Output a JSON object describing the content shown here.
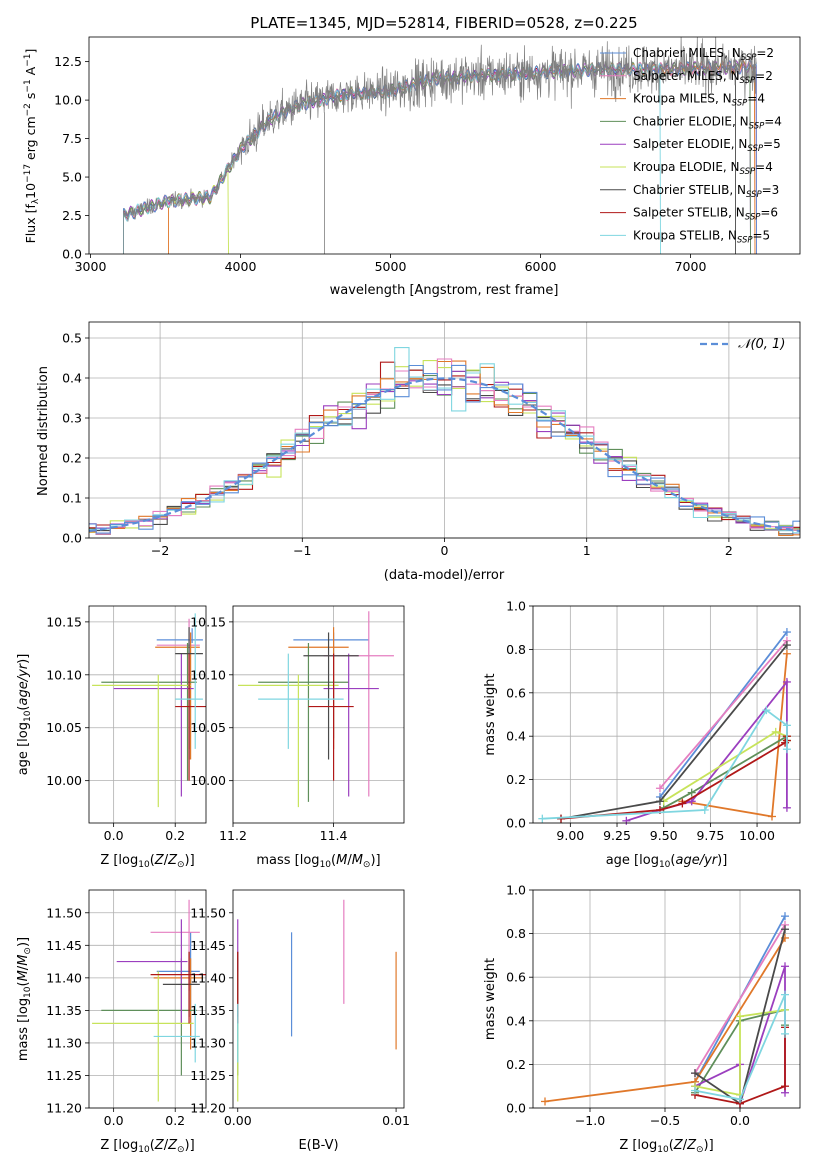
{
  "figure": {
    "title": "PLATE=1345, MJD=52814, FIBERID=0528, z=0.225"
  },
  "series_styles": [
    {
      "name": "Chabrier MILES, N_SSP=2",
      "label_main": "Chabrier MILES, N",
      "label_sub": "SSP",
      "label_tail": "=2",
      "color": "#5b8ed8"
    },
    {
      "name": "Salpeter MILES, N_SSP=2",
      "label_main": "Salpeter MILES, N",
      "label_sub": "SSP",
      "label_tail": "=2",
      "color": "#e57ec0"
    },
    {
      "name": "Kroupa MILES, N_SSP=4",
      "label_main": "Kroupa MILES, N",
      "label_sub": "SSP",
      "label_tail": "=4",
      "color": "#e0782a"
    },
    {
      "name": "Chabrier ELODIE, N_SSP=4",
      "label_main": "Chabrier ELODIE, N",
      "label_sub": "SSP",
      "label_tail": "=4",
      "color": "#5f8f5a"
    },
    {
      "name": "Salpeter ELODIE, N_SSP=5",
      "label_main": "Salpeter ELODIE, N",
      "label_sub": "SSP",
      "label_tail": "=5",
      "color": "#9b3fbf"
    },
    {
      "name": "Kroupa ELODIE, N_SSP=4",
      "label_main": "Kroupa ELODIE, N",
      "label_sub": "SSP",
      "label_tail": "=4",
      "color": "#c7e35a"
    },
    {
      "name": "Chabrier STELIB, N_SSP=3",
      "label_main": "Chabrier STELIB, N",
      "label_sub": "SSP",
      "label_tail": "=3",
      "color": "#4a4a4a"
    },
    {
      "name": "Salpeter STELIB, N_SSP=6",
      "label_main": "Salpeter STELIB, N",
      "label_sub": "SSP",
      "label_tail": "=6",
      "color": "#b01818"
    },
    {
      "name": "Kroupa STELIB, N_SSP=5",
      "label_main": "Kroupa STELIB, N",
      "label_sub": "SSP",
      "label_tail": "=5",
      "color": "#7fd6e0"
    }
  ],
  "chart_data": [
    {
      "id": "spectrum",
      "type": "line",
      "xlabel": "wavelength [Angstrom, rest frame]",
      "ylabel": "Flux [f_λ 10^-17 erg cm^-2 s^-1 A^-1]",
      "xlim": [
        2990,
        7730
      ],
      "ylim": [
        0,
        14.1
      ],
      "xticks": [
        3000,
        4000,
        5000,
        6000,
        7000
      ],
      "yticks": [
        0.0,
        2.5,
        5.0,
        7.5,
        10.0,
        12.5
      ],
      "grid": false,
      "legend": "top-right",
      "continuum_knots": {
        "x": [
          3220,
          3500,
          3800,
          4000,
          4200,
          4400,
          4700,
          5000,
          5300,
          5600,
          6000,
          6400,
          6800,
          7200,
          7600
        ],
        "y": [
          2.5,
          3.4,
          3.7,
          6.8,
          8.8,
          9.7,
          10.4,
          10.6,
          11.4,
          11.6,
          11.8,
          12.0,
          12.0,
          12.1,
          12.2
        ]
      },
      "data_range_by_series": [
        [
          3220,
          7440
        ],
        [
          3220,
          7440
        ],
        [
          3520,
          7430
        ],
        [
          3220,
          7400
        ],
        [
          3220,
          7400
        ],
        [
          3220,
          3920
        ],
        [
          3220,
          7300
        ],
        [
          3220,
          7440
        ],
        [
          3220,
          6800
        ]
      ]
    },
    {
      "id": "residual_hist",
      "type": "histogram",
      "xlabel": "(data-model)/error",
      "ylabel": "Normed distribution",
      "xlim": [
        -2.5,
        2.5
      ],
      "ylim": [
        0,
        0.54
      ],
      "xticks": [
        -2,
        -1,
        0,
        1,
        2
      ],
      "yticks": [
        0.0,
        0.1,
        0.2,
        0.3,
        0.4,
        0.5
      ],
      "grid": true,
      "legend": "top-right",
      "reference_curve": "𝒩(0, 1)",
      "reference_color": "#5b8ed8",
      "bin_width": 0.1
    },
    {
      "id": "Z_vs_age",
      "type": "errorbar",
      "xlabel": "Z [log10(Z/Z☉)]",
      "ylabel": "age  [log10(age/yr)]",
      "xlim": [
        -0.08,
        0.3
      ],
      "ylim": [
        9.96,
        10.165
      ],
      "xticks": [
        0.0,
        0.2
      ],
      "yticks": [
        10.0,
        10.05,
        10.1,
        10.15
      ],
      "grid": true,
      "points": [
        {
          "x": 0.255,
          "xlo": 0.14,
          "xhi": 0.29,
          "y": 10.133,
          "ylo": 10.13,
          "yhi": 10.144
        },
        {
          "x": 0.245,
          "xlo": 0.14,
          "xhi": 0.28,
          "y": 10.128,
          "ylo": 10.03,
          "yhi": 10.153
        },
        {
          "x": 0.25,
          "xlo": 0.135,
          "xhi": 0.28,
          "y": 10.126,
          "ylo": 10.02,
          "yhi": 10.14
        },
        {
          "x": 0.24,
          "xlo": -0.04,
          "xhi": 0.27,
          "y": 10.093,
          "ylo": 10.0,
          "yhi": 10.13
        },
        {
          "x": 0.22,
          "xlo": 0.0,
          "xhi": 0.26,
          "y": 10.087,
          "ylo": 9.985,
          "yhi": 10.12
        },
        {
          "x": 0.145,
          "xlo": -0.07,
          "xhi": 0.25,
          "y": 10.09,
          "ylo": 9.975,
          "yhi": 10.1
        },
        {
          "x": 0.245,
          "xlo": 0.2,
          "xhi": 0.29,
          "y": 10.12,
          "ylo": 10.02,
          "yhi": 10.145
        },
        {
          "x": 0.245,
          "xlo": 0.2,
          "xhi": 0.3,
          "y": 10.07,
          "ylo": 10.0,
          "yhi": 10.12
        },
        {
          "x": 0.265,
          "xlo": 0.2,
          "xhi": 0.29,
          "y": 10.077,
          "ylo": 10.03,
          "yhi": 10.158
        }
      ]
    },
    {
      "id": "mass_vs_age",
      "type": "errorbar",
      "xlabel": "mass [log10(M/M☉)]",
      "ylabel": "",
      "xlim": [
        11.2,
        11.54
      ],
      "ylim": [
        9.96,
        10.165
      ],
      "xticks": [
        11.2,
        11.4
      ],
      "yticks": [
        10.0,
        10.05,
        10.1,
        10.15
      ],
      "grid": true,
      "points": [
        {
          "x": 11.4,
          "xlo": 11.32,
          "xhi": 11.47,
          "y": 10.133,
          "ylo": 10.04,
          "yhi": 10.14
        },
        {
          "x": 11.47,
          "xlo": 11.38,
          "xhi": 11.52,
          "y": 10.118,
          "ylo": 9.985,
          "yhi": 10.16
        },
        {
          "x": 11.4,
          "xlo": 11.31,
          "xhi": 11.43,
          "y": 10.126,
          "ylo": 10.03,
          "yhi": 10.145
        },
        {
          "x": 11.35,
          "xlo": 11.25,
          "xhi": 11.43,
          "y": 10.093,
          "ylo": 9.98,
          "yhi": 10.13
        },
        {
          "x": 11.43,
          "xlo": 11.38,
          "xhi": 11.49,
          "y": 10.087,
          "ylo": 9.985,
          "yhi": 10.12
        },
        {
          "x": 11.33,
          "xlo": 11.21,
          "xhi": 11.41,
          "y": 10.09,
          "ylo": 9.975,
          "yhi": 10.1
        },
        {
          "x": 11.39,
          "xlo": 11.34,
          "xhi": 11.45,
          "y": 10.118,
          "ylo": 10.02,
          "yhi": 10.14
        },
        {
          "x": 11.4,
          "xlo": 11.35,
          "xhi": 11.44,
          "y": 10.07,
          "ylo": 10.0,
          "yhi": 10.12
        },
        {
          "x": 11.31,
          "xlo": 11.25,
          "xhi": 11.42,
          "y": 10.077,
          "ylo": 10.03,
          "yhi": 10.12
        }
      ]
    },
    {
      "id": "age_vs_weight",
      "type": "line",
      "xlabel": "age  [log10(age/yr)]",
      "ylabel": "mass weight",
      "xlim": [
        8.8,
        10.23
      ],
      "ylim": [
        0,
        1.0
      ],
      "xticks": [
        9.0,
        9.25,
        9.5,
        9.75,
        10.0
      ],
      "yticks": [
        0.0,
        0.2,
        0.4,
        0.6,
        0.8,
        1.0
      ],
      "grid": true,
      "series_points": [
        {
          "x": [
            9.48,
            10.16
          ],
          "y": [
            0.12,
            0.88
          ]
        },
        {
          "x": [
            9.48,
            10.16
          ],
          "y": [
            0.16,
            0.84
          ]
        },
        {
          "x": [
            9.6,
            10.08,
            10.16
          ],
          "y": [
            0.1,
            0.03,
            0.78
          ]
        },
        {
          "x": [
            9.5,
            9.65,
            10.16,
            10.16
          ],
          "y": [
            0.07,
            0.14,
            0.4,
            0.38
          ]
        },
        {
          "x": [
            9.3,
            9.48,
            9.65,
            10.16,
            10.16
          ],
          "y": [
            0.01,
            0.06,
            0.1,
            0.65,
            0.07
          ]
        },
        {
          "x": [
            9.5,
            10.1,
            10.16,
            10.16
          ],
          "y": [
            0.1,
            0.42,
            0.4,
            0.38
          ]
        },
        {
          "x": [
            8.95,
            9.48,
            10.16
          ],
          "y": [
            0.02,
            0.1,
            0.82
          ]
        },
        {
          "x": [
            8.95,
            9.48,
            9.6,
            10.15,
            10.16,
            10.16
          ],
          "y": [
            0.02,
            0.06,
            0.09,
            0.37,
            0.4,
            0.38
          ]
        },
        {
          "x": [
            8.85,
            9.72,
            10.05,
            10.16,
            10.16
          ],
          "y": [
            0.02,
            0.06,
            0.52,
            0.45,
            0.34
          ]
        }
      ]
    },
    {
      "id": "Z_vs_mass",
      "type": "errorbar",
      "xlabel": "Z [log10(Z/Z☉)]",
      "ylabel": "mass [log10(M/M☉)]",
      "xlim": [
        -0.08,
        0.3
      ],
      "ylim": [
        11.2,
        11.535
      ],
      "xticks": [
        0.0,
        0.2
      ],
      "yticks": [
        11.2,
        11.25,
        11.3,
        11.35,
        11.4,
        11.45,
        11.5
      ],
      "grid": true,
      "points": [
        {
          "x": 0.25,
          "xlo": 0.14,
          "xhi": 0.28,
          "y": 11.41,
          "ylo": 11.31,
          "yhi": 11.47
        },
        {
          "x": 0.245,
          "xlo": 0.12,
          "xhi": 0.28,
          "y": 11.47,
          "ylo": 11.38,
          "yhi": 11.52
        },
        {
          "x": 0.25,
          "xlo": 0.13,
          "xhi": 0.29,
          "y": 11.4,
          "ylo": 11.29,
          "yhi": 11.43
        },
        {
          "x": 0.22,
          "xlo": -0.04,
          "xhi": 0.27,
          "y": 11.35,
          "ylo": 11.25,
          "yhi": 11.43
        },
        {
          "x": 0.22,
          "xlo": 0.01,
          "xhi": 0.24,
          "y": 11.425,
          "ylo": 11.33,
          "yhi": 11.49
        },
        {
          "x": 0.145,
          "xlo": -0.07,
          "xhi": 0.26,
          "y": 11.33,
          "ylo": 11.21,
          "yhi": 11.41
        },
        {
          "x": 0.245,
          "xlo": 0.16,
          "xhi": 0.28,
          "y": 11.39,
          "ylo": 11.34,
          "yhi": 11.44
        },
        {
          "x": 0.245,
          "xlo": 0.12,
          "xhi": 0.3,
          "y": 11.405,
          "ylo": 11.33,
          "yhi": 11.44
        },
        {
          "x": 0.265,
          "xlo": 0.13,
          "xhi": 0.28,
          "y": 11.31,
          "ylo": 11.27,
          "yhi": 11.36
        }
      ]
    },
    {
      "id": "EBV_vs_mass",
      "type": "errorbar",
      "xlabel": "E(B-V)",
      "ylabel": "",
      "xlim": [
        -0.0003,
        0.0105
      ],
      "ylim": [
        11.2,
        11.535
      ],
      "xticks": [
        0.0,
        0.01
      ],
      "yticks": [
        11.2,
        11.25,
        11.3,
        11.35,
        11.4,
        11.45,
        11.5
      ],
      "grid": false,
      "points": [
        {
          "x": 0.0034,
          "y": 11.41,
          "ylo": 11.31,
          "yhi": 11.47
        },
        {
          "x": 0.0067,
          "y": 11.47,
          "ylo": 11.36,
          "yhi": 11.52
        },
        {
          "x": 0.01,
          "y": 11.4,
          "ylo": 11.29,
          "yhi": 11.44
        },
        {
          "x": 0.0,
          "y": 11.35,
          "ylo": 11.25,
          "yhi": 11.43
        },
        {
          "x": 0.0,
          "y": 11.425,
          "ylo": 11.33,
          "yhi": 11.49
        },
        {
          "x": 0.0,
          "y": 11.33,
          "ylo": 11.21,
          "yhi": 11.41
        },
        {
          "x": 0.0,
          "y": 11.39,
          "ylo": 11.34,
          "yhi": 11.44
        },
        {
          "x": 0.0,
          "y": 11.405,
          "ylo": 11.33,
          "yhi": 11.44
        },
        {
          "x": 0.0,
          "y": 11.31,
          "ylo": 11.27,
          "yhi": 11.36
        }
      ]
    },
    {
      "id": "Z_vs_weight",
      "type": "line",
      "xlabel": "Z [log10(Z/Z☉)]",
      "ylabel": "mass weight",
      "xlim": [
        -1.38,
        0.4
      ],
      "ylim": [
        0,
        1.0
      ],
      "xticks": [
        -1.0,
        -0.5,
        0.0
      ],
      "yticks": [
        0.0,
        0.2,
        0.4,
        0.6,
        0.8,
        1.0
      ],
      "grid": true,
      "series_points": [
        {
          "x": [
            -0.3,
            0.3
          ],
          "y": [
            0.12,
            0.88
          ]
        },
        {
          "x": [
            -0.3,
            0.3
          ],
          "y": [
            0.16,
            0.84
          ]
        },
        {
          "x": [
            -1.3,
            -0.3,
            0.3
          ],
          "y": [
            0.03,
            0.12,
            0.78
          ]
        },
        {
          "x": [
            -0.3,
            0.0,
            0.3,
            0.3
          ],
          "y": [
            0.07,
            0.4,
            0.45,
            0.38
          ]
        },
        {
          "x": [
            -0.3,
            0.0,
            0.0,
            0.3,
            0.3
          ],
          "y": [
            0.1,
            0.2,
            0.02,
            0.65,
            0.07
          ]
        },
        {
          "x": [
            -0.3,
            0.0,
            0.0,
            0.3
          ],
          "y": [
            0.1,
            0.06,
            0.42,
            0.45
          ]
        },
        {
          "x": [
            -0.3,
            0.0,
            0.3
          ],
          "y": [
            0.16,
            0.02,
            0.82
          ]
        },
        {
          "x": [
            -0.3,
            0.0,
            0.3,
            0.3
          ],
          "y": [
            0.06,
            0.02,
            0.1,
            0.37
          ]
        },
        {
          "x": [
            -0.3,
            0.0,
            0.3,
            0.3
          ],
          "y": [
            0.08,
            0.04,
            0.52,
            0.34
          ]
        }
      ]
    }
  ]
}
